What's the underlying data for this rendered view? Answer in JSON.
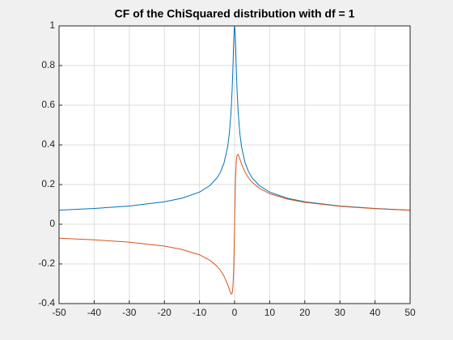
{
  "chart_data": {
    "type": "line",
    "title": "CF of the ChiSquared distribution with df = 1",
    "x": [
      -50,
      -40,
      -30,
      -20,
      -15,
      -10,
      -7,
      -5,
      -4,
      -3,
      -2,
      -1.5,
      -1,
      -0.7,
      -0.5,
      -0.3,
      -0.2,
      -0.1,
      0,
      0.1,
      0.2,
      0.3,
      0.5,
      0.7,
      1,
      1.5,
      2,
      3,
      4,
      5,
      7,
      10,
      15,
      20,
      30,
      40,
      50
    ],
    "series": [
      {
        "color": "#0072bd",
        "values": [
          0.07106,
          0.07955,
          0.09204,
          0.11317,
          0.1312,
          0.1619,
          0.1954,
          0.2339,
          0.264,
          0.3094,
          0.3882,
          0.4562,
          0.5689,
          0.6779,
          0.7769,
          0.8924,
          0.9462,
          0.9854,
          1,
          0.9854,
          0.9462,
          0.8924,
          0.7769,
          0.6779,
          0.5689,
          0.4562,
          0.3882,
          0.3094,
          0.264,
          0.2339,
          0.1954,
          0.1619,
          0.1312,
          0.11317,
          0.09204,
          0.07955,
          0.07106
        ]
      },
      {
        "color": "#d95319",
        "values": [
          -0.07036,
          -0.07856,
          -0.09052,
          -0.11038,
          -0.1269,
          -0.154,
          -0.1819,
          -0.2117,
          -0.2331,
          -0.2621,
          -0.3031,
          -0.3288,
          -0.3516,
          -0.3489,
          -0.3218,
          -0.2472,
          -0.1822,
          -0.0976,
          0,
          0.0976,
          0.1822,
          0.2472,
          0.3218,
          0.3489,
          0.3516,
          0.3288,
          0.3031,
          0.2621,
          0.2331,
          0.2117,
          0.1819,
          0.154,
          0.1269,
          0.11038,
          0.09052,
          0.07856,
          0.07036
        ]
      }
    ],
    "xlim": [
      -50,
      50
    ],
    "xticks": [
      -50,
      -40,
      -30,
      -20,
      -10,
      0,
      10,
      20,
      30,
      40,
      50
    ],
    "ylim": [
      -0.4,
      1
    ],
    "yticks": [
      -0.4,
      -0.2,
      0,
      0.2,
      0.4,
      0.6,
      0.8,
      1
    ],
    "grid": true
  }
}
